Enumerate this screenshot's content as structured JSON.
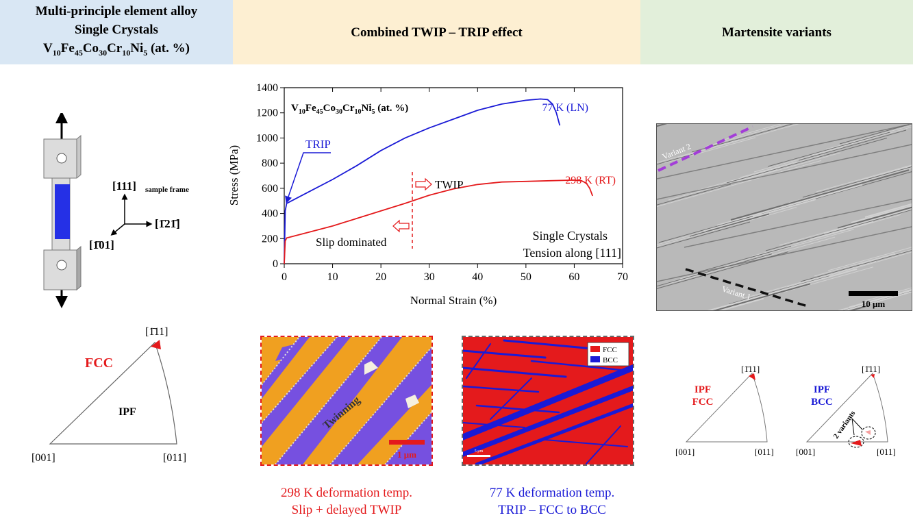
{
  "headers": {
    "left_line1": "Multi-principle element alloy",
    "left_line2": "Single Crystals",
    "left_alloy_parts": [
      "V",
      "10",
      "Fe",
      "45",
      "Co",
      "30",
      "Cr",
      "10",
      "Ni",
      "5",
      " (at. %)"
    ],
    "middle": "Combined TWIP – TRIP effect",
    "right": "Martensite variants"
  },
  "specimen": {
    "axis_top": "[111]",
    "axis_top_note": "sample frame",
    "axis_right": "[1̄21̄]",
    "axis_left": "[1̄01]"
  },
  "ipf_main": {
    "corner_top": "[1̄11]",
    "corner_left": "[001]",
    "corner_right": "[011]",
    "phase": "FCC",
    "center_label": "IPF"
  },
  "chart_data": {
    "type": "line",
    "title_parts": [
      "V",
      "10",
      "Fe",
      "45",
      "Co",
      "30",
      "Cr",
      "10",
      "Ni",
      "5",
      " (at. %)"
    ],
    "xlabel": "Normal Strain (%)",
    "ylabel": "Stress (MPa)",
    "xlim": [
      0,
      70
    ],
    "ylim": [
      0,
      1400
    ],
    "xticks": [
      0,
      10,
      20,
      30,
      40,
      50,
      60,
      70
    ],
    "yticks": [
      0,
      200,
      400,
      600,
      800,
      1000,
      1200,
      1400
    ],
    "grid": false,
    "series": [
      {
        "name": "77 K (LN)",
        "color": "#1a1ad6",
        "x": [
          0,
          0.2,
          0.5,
          1,
          3,
          6,
          10,
          15,
          20,
          25,
          30,
          35,
          40,
          45,
          50,
          53,
          54.5,
          55.5,
          56.3,
          57
        ],
        "y": [
          0,
          420,
          480,
          490,
          530,
          590,
          670,
          780,
          900,
          1000,
          1080,
          1150,
          1220,
          1270,
          1300,
          1310,
          1305,
          1270,
          1200,
          1100
        ]
      },
      {
        "name": "298 K (RT)",
        "color": "#e41a1c",
        "x": [
          0,
          0.2,
          0.5,
          2,
          5,
          10,
          15,
          20,
          25,
          30,
          35,
          40,
          45,
          50,
          55,
          60,
          61.5,
          62.5,
          63.2,
          63.8
        ],
        "y": [
          0,
          180,
          205,
          220,
          250,
          300,
          360,
          420,
          480,
          545,
          595,
          630,
          650,
          655,
          660,
          665,
          660,
          640,
          600,
          540
        ]
      }
    ],
    "annotations": {
      "trip": "TRIP",
      "twip": "TWIP",
      "slip": "Slip dominated",
      "note_line1": "Single Crystals",
      "note_line2": "Tension along [111]"
    }
  },
  "map_twin": {
    "label": "Twinning",
    "scale": "1 μm",
    "caption_line1": "298 K deformation temp.",
    "caption_line2": "Slip + delayed TWIP"
  },
  "map_phase": {
    "legend_fcc": "FCC",
    "legend_bcc": "BCC",
    "scale": "5 μm",
    "caption_line1": "77 K deformation temp.",
    "caption_line2": "TRIP – FCC to BCC"
  },
  "sem": {
    "variant2": "Variant 2",
    "variant1": "Variant 1",
    "scale": "10 μm"
  },
  "ipf_small_fcc": {
    "corner_top": "[1̄11]",
    "corner_left": "[001]",
    "corner_right": "[011]",
    "label_line1": "IPF",
    "label_line2": "FCC"
  },
  "ipf_small_bcc": {
    "corner_top": "[1̄11]",
    "corner_left": "[001]",
    "corner_right": "[011]",
    "label_line1": "IPF",
    "label_line2": "BCC",
    "variants": "2 variants"
  },
  "colors": {
    "red": "#e41a1c",
    "blue": "#1a1ad6",
    "purple": "#9b3fd6",
    "orange": "#f0a020",
    "violet": "#7650e0"
  }
}
